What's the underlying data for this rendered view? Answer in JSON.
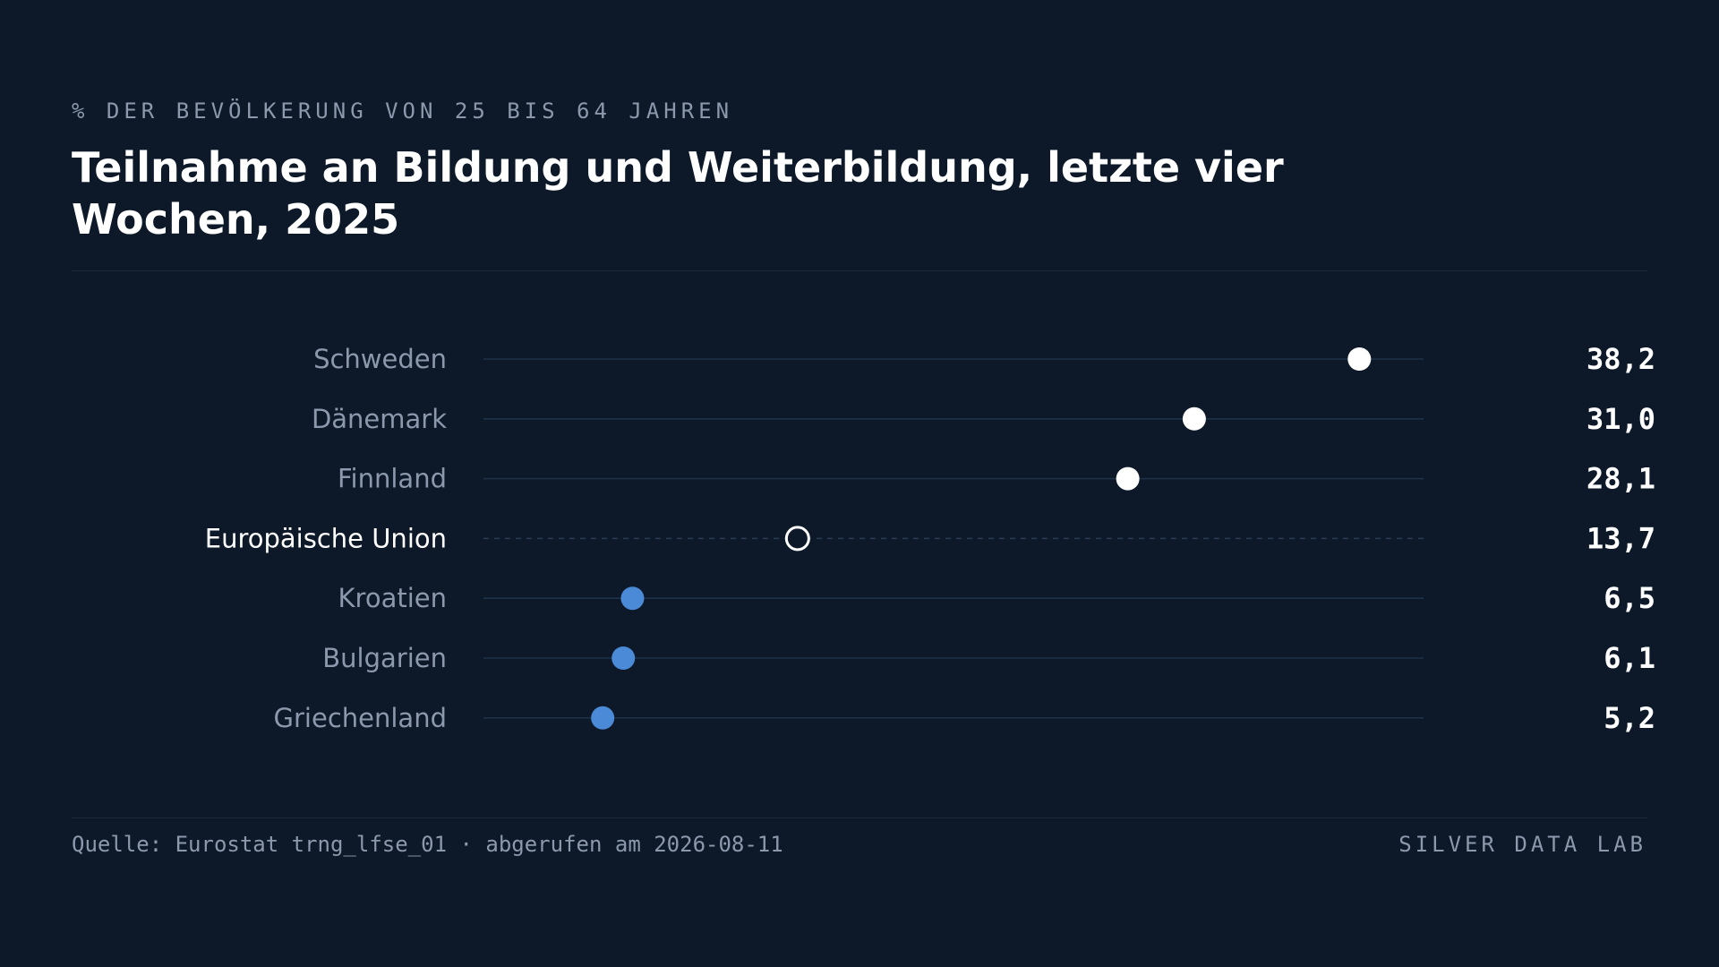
{
  "header": {
    "subtitle": "% DER BEVÖLKERUNG VON 25 BIS 64 JAHREN",
    "title": "Teilnahme an Bildung und Weiterbildung, letzte vier Wochen, 2025"
  },
  "footer": {
    "source": "Quelle: Eurostat trng_lfse_01 · abgerufen am 2026-08-11",
    "brand": "SILVER DATA LAB"
  },
  "colors": {
    "background": "#0d1929",
    "top_group": "#ffffff",
    "bottom_group": "#4a8ad6",
    "reference": "#ffffff",
    "track": "#1f3148"
  },
  "chart_data": {
    "type": "scatter",
    "subtype": "dot-plot",
    "title": "Teilnahme an Bildung und Weiterbildung, letzte vier Wochen, 2025",
    "unit": "% der Bevölkerung von 25 bis 64 Jahren",
    "xlim": [
      0,
      41
    ],
    "grid": false,
    "categories": [
      "Schweden",
      "Dänemark",
      "Finnland",
      "Europäische Union",
      "Kroatien",
      "Bulgarien",
      "Griechenland"
    ],
    "values": [
      38.2,
      31.0,
      28.1,
      13.7,
      6.5,
      6.1,
      5.2
    ],
    "value_labels": [
      "38,2",
      "31,0",
      "28,1",
      "13,7",
      "6,5",
      "6,1",
      "5,2"
    ],
    "groups": [
      "top",
      "top",
      "top",
      "reference",
      "bottom",
      "bottom",
      "bottom"
    ]
  }
}
